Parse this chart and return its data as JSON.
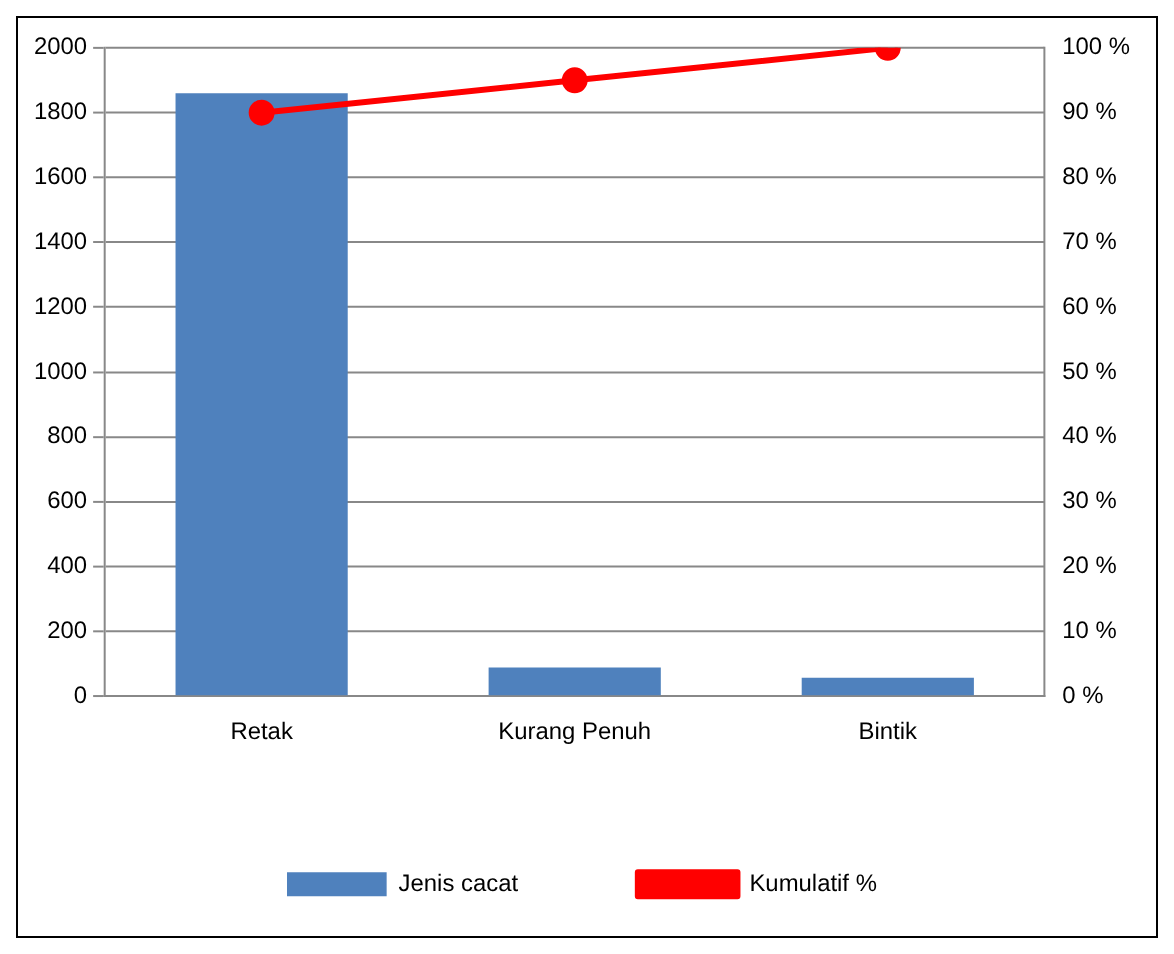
{
  "chart_data": {
    "type": "bar",
    "categories": [
      "Retak",
      "Kurang Penuh",
      "Bintik"
    ],
    "series": [
      {
        "name": "Jenis cacat",
        "color": "#4f81bd",
        "values": [
          1860,
          89,
          57
        ]
      },
      {
        "name": "Kumulatif %",
        "type": "line",
        "axis": "y2",
        "color": "#ff0000",
        "values": [
          90,
          95,
          100
        ],
        "marker": "circle"
      }
    ],
    "ylim": [
      0,
      2000
    ],
    "yticks": [
      0,
      200,
      400,
      600,
      800,
      1000,
      1200,
      1400,
      1600,
      1800,
      2000
    ],
    "y2lim": [
      0,
      100
    ],
    "y2ticks": [
      {
        "value": 0,
        "label": "0 %"
      },
      {
        "value": 10,
        "label": "10 %"
      },
      {
        "value": 20,
        "label": "20 %"
      },
      {
        "value": 30,
        "label": "30 %"
      },
      {
        "value": 40,
        "label": "40 %"
      },
      {
        "value": 50,
        "label": "50 %"
      },
      {
        "value": 60,
        "label": "60 %"
      },
      {
        "value": 70,
        "label": "70 %"
      },
      {
        "value": 80,
        "label": "80 %"
      },
      {
        "value": 90,
        "label": "90 %"
      },
      {
        "value": 100,
        "label": "100 %"
      }
    ],
    "grid": "y",
    "legend": "bottom"
  }
}
